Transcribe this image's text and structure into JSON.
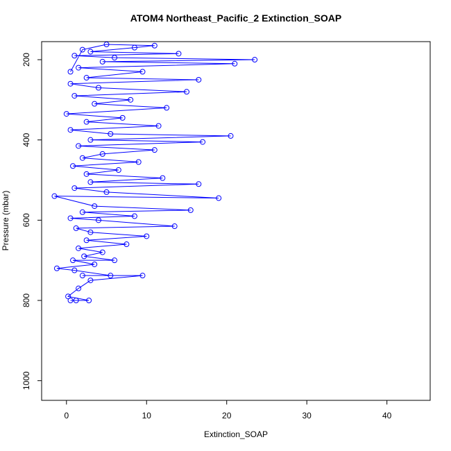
{
  "chart_data": {
    "type": "line",
    "markers": true,
    "color": "#0000ff",
    "title": "ATOM4 Northeast_Pacific_2 Extinction_SOAP",
    "x_label": "Extinction_SOAP",
    "y_label": "Pressure (mbar)",
    "xlim": [
      -3.1,
      45.4
    ],
    "ylim": [
      155,
      1049
    ],
    "y_reversed": true,
    "xticks": [
      0,
      10,
      20,
      30,
      40
    ],
    "yticks": [
      200,
      400,
      600,
      800,
      1000
    ],
    "x": [
      0.5,
      1.2,
      2.8,
      0.2,
      1.5,
      3.0,
      9.5,
      2.0,
      5.5,
      1.0,
      -1.2,
      3.5,
      0.8,
      6.0,
      2.2,
      4.5,
      1.5,
      7.5,
      2.5,
      10.0,
      3.0,
      1.2,
      13.5,
      4.0,
      0.5,
      8.5,
      2.0,
      15.5,
      3.5,
      -1.5,
      19.0,
      5.0,
      1.0,
      16.5,
      3.0,
      12.0,
      2.5,
      6.5,
      0.8,
      9.0,
      2.0,
      4.5,
      11.0,
      1.5,
      17.0,
      3.0,
      20.5,
      5.5,
      0.5,
      11.5,
      2.5,
      7.0,
      0.0,
      12.5,
      3.5,
      8.0,
      1.0,
      15.0,
      4.0,
      0.5,
      16.5,
      2.5,
      9.5,
      1.5,
      21.0,
      4.5,
      23.5,
      6.0,
      1.0,
      14.0,
      3.0,
      8.5,
      11.0,
      5.0,
      2.0,
      0.5
    ],
    "values": [
      800,
      800,
      800,
      790,
      770,
      750,
      738,
      738,
      738,
      725,
      720,
      710,
      700,
      700,
      690,
      680,
      670,
      660,
      650,
      640,
      630,
      620,
      615,
      600,
      595,
      590,
      580,
      575,
      565,
      540,
      545,
      530,
      520,
      510,
      505,
      495,
      485,
      475,
      465,
      455,
      445,
      435,
      425,
      415,
      405,
      400,
      390,
      385,
      375,
      365,
      355,
      345,
      335,
      320,
      310,
      300,
      290,
      280,
      270,
      260,
      250,
      245,
      230,
      220,
      210,
      205,
      200,
      195,
      190,
      185,
      180,
      170,
      165,
      162,
      175,
      230
    ]
  }
}
